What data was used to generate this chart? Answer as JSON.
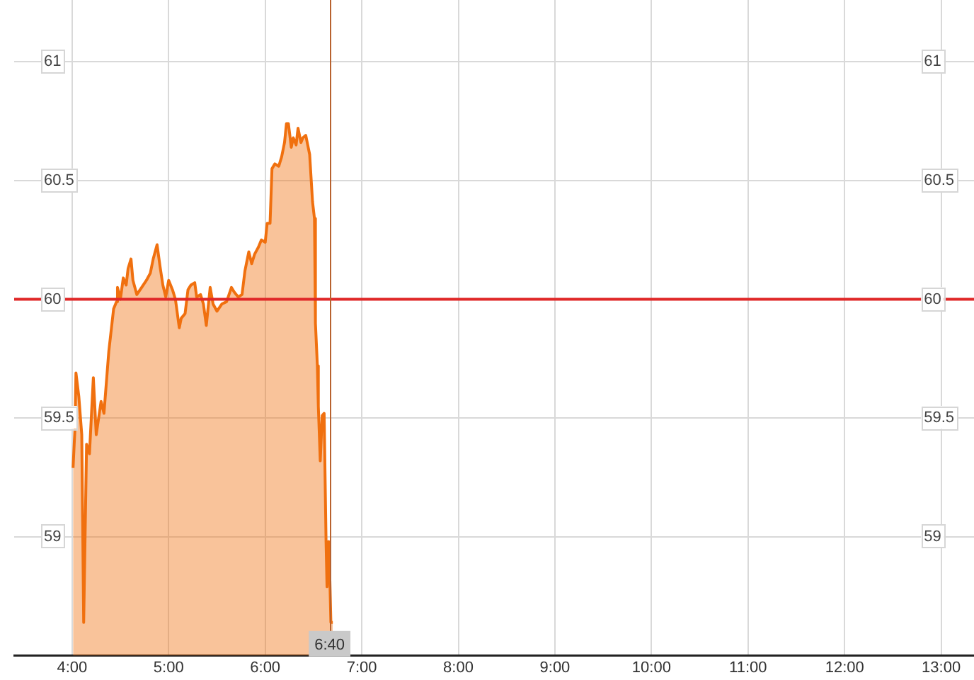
{
  "chart_data": {
    "type": "area",
    "x": [
      4.01,
      4.03,
      4.04,
      4.07,
      4.1,
      4.12,
      4.15,
      4.18,
      4.22,
      4.25,
      4.3,
      4.33,
      4.38,
      4.43,
      4.46,
      4.47,
      4.5,
      4.53,
      4.56,
      4.58,
      4.61,
      4.63,
      4.67,
      4.72,
      4.77,
      4.81,
      4.84,
      4.88,
      4.91,
      4.94,
      4.97,
      5.0,
      5.04,
      5.07,
      5.11,
      5.13,
      5.17,
      5.2,
      5.23,
      5.27,
      5.29,
      5.33,
      5.36,
      5.39,
      5.43,
      5.46,
      5.5,
      5.55,
      5.6,
      5.65,
      5.68,
      5.72,
      5.76,
      5.79,
      5.83,
      5.86,
      5.89,
      5.93,
      5.96,
      6.0,
      6.02,
      6.05,
      6.07,
      6.1,
      6.14,
      6.17,
      6.2,
      6.22,
      6.24,
      6.27,
      6.29,
      6.32,
      6.34,
      6.37,
      6.39,
      6.42,
      6.44,
      6.46,
      6.49,
      6.51,
      6.52,
      6.54,
      6.55,
      6.57,
      6.59,
      6.61,
      6.63,
      6.64,
      6.66,
      6.68,
      6.7
    ],
    "series": [
      {
        "color": "#f0700f",
        "values": [
          59.29,
          59.46,
          59.69,
          59.59,
          59.43,
          58.64,
          59.39,
          59.35,
          59.67,
          59.43,
          59.57,
          59.52,
          59.78,
          59.96,
          59.99,
          60.05,
          60.0,
          60.09,
          60.06,
          60.13,
          60.17,
          60.08,
          60.02,
          60.05,
          60.08,
          60.11,
          60.17,
          60.23,
          60.14,
          60.06,
          60.01,
          60.08,
          60.04,
          60.0,
          59.88,
          59.92,
          59.94,
          60.04,
          60.06,
          60.07,
          60.01,
          60.02,
          59.98,
          59.89,
          60.05,
          59.98,
          59.95,
          59.98,
          59.99,
          60.05,
          60.03,
          60.01,
          60.02,
          60.12,
          60.2,
          60.15,
          60.19,
          60.22,
          60.25,
          60.24,
          60.32,
          60.32,
          60.55,
          60.57,
          60.56,
          60.6,
          60.66,
          60.74,
          60.74,
          60.64,
          60.68,
          60.65,
          60.72,
          60.66,
          60.68,
          60.69,
          60.65,
          60.61,
          60.41,
          60.34,
          59.9,
          59.72,
          59.55,
          59.32,
          59.51,
          59.52,
          58.98,
          58.79,
          58.98,
          58.64,
          58.64
        ]
      }
    ],
    "xlim": [
      3.4,
      13.34
    ],
    "xticks": [
      {
        "value": 4,
        "label": "4:00"
      },
      {
        "value": 5,
        "label": "5:00"
      },
      {
        "value": 6,
        "label": "6:00"
      },
      {
        "value": 7,
        "label": "7:00"
      },
      {
        "value": 8,
        "label": "8:00"
      },
      {
        "value": 9,
        "label": "9:00"
      },
      {
        "value": 10,
        "label": "10:00"
      },
      {
        "value": 11,
        "label": "11:00"
      },
      {
        "value": 12,
        "label": "12:00"
      },
      {
        "value": 13,
        "label": "13:00"
      }
    ],
    "ylim": [
      58.5,
      61.26
    ],
    "yticks": [
      59,
      59.5,
      60,
      60.5,
      61
    ],
    "y2lim": [
      58.5,
      61.26
    ],
    "y2ticks": [
      59,
      59.5,
      60,
      60.5,
      61
    ],
    "grid": true,
    "ref_lines": [
      {
        "axis": "y",
        "value": 60,
        "color": "#e02828"
      },
      {
        "axis": "x",
        "value": 6.6667,
        "color": "#b8622f"
      }
    ],
    "annotations": [
      {
        "text": "6:40",
        "x": 6.6667,
        "y": 58.55
      }
    ]
  }
}
